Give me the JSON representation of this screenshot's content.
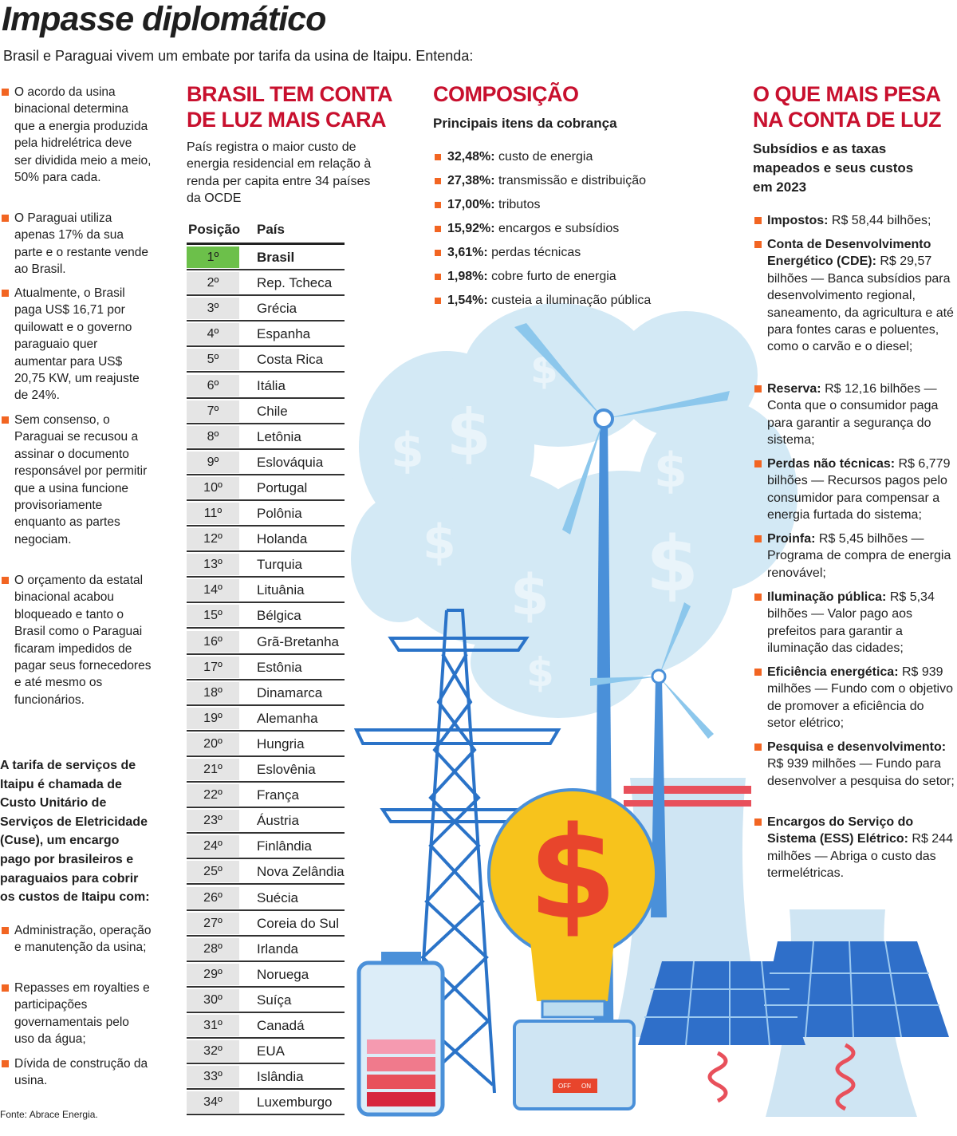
{
  "header": {
    "title": "Impasse diplomático",
    "subtitle": "Brasil e Paraguai vivem um embate por tarifa da usina de Itaipu. Entenda:"
  },
  "left": {
    "bullets": [
      "O acordo da usina binacional determina que a energia produzida pela hidrelétrica deve ser dividida meio a meio, 50% para cada.",
      "O Paraguai utiliza apenas 17% da sua parte e o restante vende ao Brasil.",
      "Atualmente, o Brasil paga US$ 16,71 por quilowatt e o governo paraguaio quer aumentar para US$ 20,75 KW, um reajuste de 24%.",
      "Sem consenso, o Paraguai se recusou a assinar o documento responsável por permitir que a usina funcione provisoriamente enquanto as partes negociam.",
      "O orçamento da estatal binacional acabou bloqueado e tanto o Brasil como o Paraguai ficaram impedidos de pagar seus fornecedores e até mesmo os funcionários."
    ],
    "cuse_text": "A tarifa de serviços de Itaipu é chamada de Custo Unitário de Serviços de Eletricidade (Cuse), um encargo pago por brasileiros e paraguaios para cobrir os custos de Itaipu com:",
    "cuse_bullets": [
      "Administração, operação e manutenção da usina;",
      "Repasses em royalties e participações governamentais pelo uso da água;",
      "Dívida de construção da usina."
    ],
    "source": "Fonte: Abrace Energia."
  },
  "ranking": {
    "title": "BRASIL TEM CONTA DE LUZ MAIS CARA",
    "description": "País registra o maior custo de energia residencial em relação à renda per capita entre 34 países da OCDE",
    "columns": [
      "Posição",
      "País"
    ],
    "rows": [
      [
        "1º",
        "Brasil"
      ],
      [
        "2º",
        "Rep. Tcheca"
      ],
      [
        "3º",
        "Grécia"
      ],
      [
        "4º",
        "Espanha"
      ],
      [
        "5º",
        "Costa Rica"
      ],
      [
        "6º",
        "Itália"
      ],
      [
        "7º",
        "Chile"
      ],
      [
        "8º",
        "Letônia"
      ],
      [
        "9º",
        "Eslováquia"
      ],
      [
        "10º",
        "Portugal"
      ],
      [
        "11º",
        "Polônia"
      ],
      [
        "12º",
        "Holanda"
      ],
      [
        "13º",
        "Turquia"
      ],
      [
        "14º",
        "Lituânia"
      ],
      [
        "15º",
        "Bélgica"
      ],
      [
        "16º",
        "Grã-Bretanha"
      ],
      [
        "17º",
        "Estônia"
      ],
      [
        "18º",
        "Dinamarca"
      ],
      [
        "19º",
        "Alemanha"
      ],
      [
        "20º",
        "Hungria"
      ],
      [
        "21º",
        "Eslovênia"
      ],
      [
        "22º",
        "França"
      ],
      [
        "23º",
        "Áustria"
      ],
      [
        "24º",
        "Finlândia"
      ],
      [
        "25º",
        "Nova Zelândia"
      ],
      [
        "26º",
        "Suécia"
      ],
      [
        "27º",
        "Coreia do Sul"
      ],
      [
        "28º",
        "Irlanda"
      ],
      [
        "29º",
        "Noruega"
      ],
      [
        "30º",
        "Suíça"
      ],
      [
        "31º",
        "Canadá"
      ],
      [
        "32º",
        "EUA"
      ],
      [
        "33º",
        "Islândia"
      ],
      [
        "34º",
        "Luxemburgo"
      ]
    ]
  },
  "composition": {
    "title": "COMPOSIÇÃO",
    "subtitle": "Principais itens da cobrança",
    "items": [
      {
        "value": "32,48%:",
        "label": "custo de energia"
      },
      {
        "value": "27,38%:",
        "label": "transmissão e distribuição"
      },
      {
        "value": "17,00%:",
        "label": "tributos"
      },
      {
        "value": "15,92%:",
        "label": "encargos e subsídios"
      },
      {
        "value": "3,61%:",
        "label": "perdas técnicas"
      },
      {
        "value": "1,98%:",
        "label": "cobre furto de energia"
      },
      {
        "value": "1,54%:",
        "label": "custeia a iluminação pública"
      }
    ]
  },
  "weights": {
    "title": "O QUE MAIS PESA NA CONTA DE LUZ",
    "subtitle": "Subsídios e as taxas mapeados e seus custos em 2023",
    "items": [
      {
        "name": "Impostos:",
        "text": "R$ 58,44 bilhões;"
      },
      {
        "name": "Conta de Desenvolvimento Energético (CDE):",
        "text": "R$ 29,57 bilhões — Banca subsídios para desenvolvimento regional, saneamento, da agricultura e até para fontes caras e poluentes, como o carvão e o diesel;"
      },
      {
        "name": "Reserva:",
        "text": "R$ 12,16 bilhões — Conta que o consumidor paga para garantir a segurança do sistema;"
      },
      {
        "name": "Perdas não técnicas:",
        "text": "R$ 6,779 bilhões — Recursos pagos pelo consumidor para compensar a energia furtada do sistema;"
      },
      {
        "name": "Proinfa:",
        "text": "R$ 5,45 bilhões — Programa de compra de energia renovável;"
      },
      {
        "name": "Iluminação pública:",
        "text": "R$ 5,34 bilhões — Valor pago aos prefeitos para garantir a iluminação das cidades;"
      },
      {
        "name": "Eficiência energética:",
        "text": "R$ 939 milhões — Fundo com o objetivo de promover a eficiência do setor elétrico;"
      },
      {
        "name": "Pesquisa e desenvolvimento:",
        "text": "R$ 939 milhões — Fundo para desenvolver a pesquisa do setor;"
      },
      {
        "name": "Encargos do Serviço do Sistema (ESS) Elétrico:",
        "text": "R$ 244 milhões — Abriga o custo das termelétricas."
      }
    ]
  },
  "illustration": {
    "symbol": "$",
    "switch": [
      "OFF",
      "ON"
    ]
  }
}
